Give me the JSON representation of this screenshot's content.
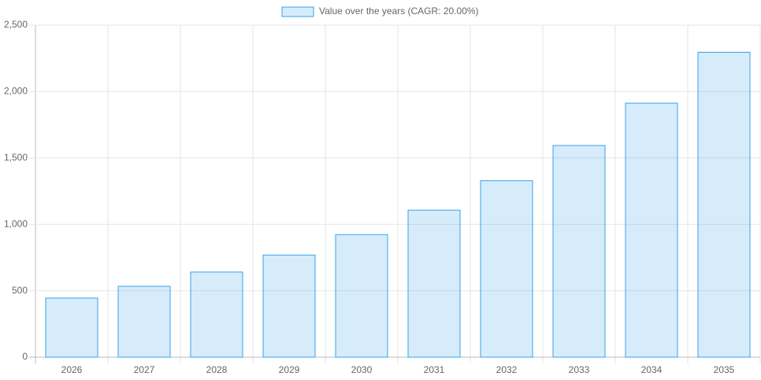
{
  "chart_data": {
    "type": "bar",
    "categories": [
      "2026",
      "2027",
      "2028",
      "2029",
      "2030",
      "2031",
      "2032",
      "2033",
      "2034",
      "2035"
    ],
    "series": [
      {
        "name": "Value over the years (CAGR: 20.00%)",
        "color": "#36a2eb",
        "values": [
          445,
          534,
          641,
          769,
          923,
          1107,
          1329,
          1594,
          1913,
          2296
        ]
      }
    ],
    "ylim": [
      0,
      2500
    ],
    "yticks": [
      0,
      500,
      {
        "value": 1000,
        "label": "1,000"
      },
      {
        "value": 1500,
        "label": "1,500"
      },
      {
        "value": 2000,
        "label": "2,000"
      },
      {
        "value": 2500,
        "label": "2,500"
      }
    ],
    "grid": true,
    "legend": "top"
  }
}
